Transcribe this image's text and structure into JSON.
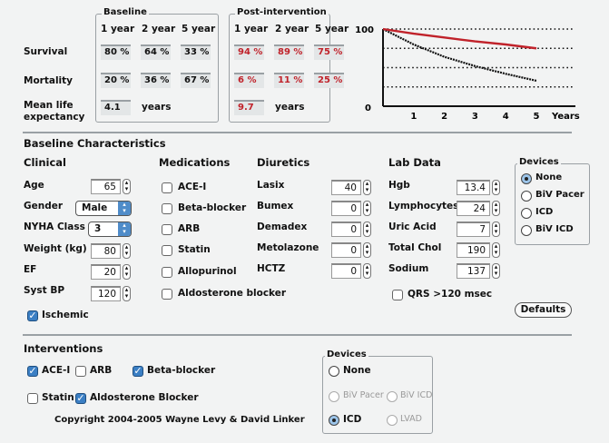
{
  "results": {
    "baseline_legend": "Baseline",
    "post_legend": "Post-intervention",
    "year_headers": [
      "1 year",
      "2 year",
      "5 year"
    ],
    "row_labels": {
      "survival": "Survival",
      "mortality": "Mortality",
      "mean_life": "Mean life",
      "expectancy": "expectancy"
    },
    "baseline": {
      "survival": [
        "80 %",
        "64 %",
        "33 %"
      ],
      "mortality": [
        "20 %",
        "36 %",
        "67 %"
      ],
      "mean_life": "4.1"
    },
    "post": {
      "survival": [
        "94 %",
        "89 %",
        "75 %"
      ],
      "mortality": [
        "6 %",
        "11 %",
        "25 %"
      ],
      "mean_life": "9.7"
    },
    "years_unit": "years"
  },
  "chart_data": {
    "type": "line",
    "x": [
      0,
      1,
      2,
      3,
      4,
      5
    ],
    "series": [
      {
        "name": "Baseline",
        "color": "#111111",
        "values": [
          100,
          80,
          64,
          52,
          42,
          33
        ]
      },
      {
        "name": "Post-intervention",
        "color": "#c0222a",
        "values": [
          100,
          94,
          89,
          84,
          80,
          75
        ]
      }
    ],
    "xticks": [
      "1",
      "2",
      "3",
      "4",
      "5"
    ],
    "ytick_labels": [
      "100",
      "0"
    ],
    "xlabel": "Years",
    "ylim": [
      0,
      100
    ],
    "xlim": [
      0,
      5
    ],
    "gridlines": [
      25,
      50,
      75,
      100
    ],
    "grid": "dotted horizontal"
  },
  "baseline_section": {
    "title": "Baseline Characteristics"
  },
  "clinical": {
    "title": "Clinical",
    "age": {
      "label": "Age",
      "value": "65"
    },
    "gender": {
      "label": "Gender",
      "value": "Male"
    },
    "nyha": {
      "label": "NYHA Class",
      "value": "3"
    },
    "weight": {
      "label": "Weight (kg)",
      "value": "80"
    },
    "ef": {
      "label": "EF",
      "value": "20"
    },
    "sbp": {
      "label": "Syst BP",
      "value": "120"
    },
    "ischemic": {
      "label": "Ischemic",
      "checked": true
    }
  },
  "medications": {
    "title": "Medications",
    "items": [
      {
        "label": "ACE-I",
        "checked": false
      },
      {
        "label": "Beta-blocker",
        "checked": false
      },
      {
        "label": "ARB",
        "checked": false
      },
      {
        "label": "Statin",
        "checked": false
      },
      {
        "label": "Allopurinol",
        "checked": false
      },
      {
        "label": "Aldosterone blocker",
        "checked": false
      }
    ]
  },
  "diuretics": {
    "title": "Diuretics",
    "items": [
      {
        "label": "Lasix",
        "value": "40"
      },
      {
        "label": "Bumex",
        "value": "0"
      },
      {
        "label": "Demadex",
        "value": "0"
      },
      {
        "label": "Metolazone",
        "value": "0"
      },
      {
        "label": "HCTZ",
        "value": "0"
      }
    ]
  },
  "lab": {
    "title": "Lab Data",
    "items": [
      {
        "label": "Hgb",
        "value": "13.4"
      },
      {
        "label": "Lymphocytes",
        "value": "24"
      },
      {
        "label": "Uric Acid",
        "value": "7"
      },
      {
        "label": "Total Chol",
        "value": "190"
      },
      {
        "label": "Sodium",
        "value": "137"
      }
    ],
    "qrs": {
      "label": "QRS >120 msec",
      "checked": false
    }
  },
  "devices": {
    "title": "Devices",
    "options": [
      "None",
      "BiV Pacer",
      "ICD",
      "BiV ICD"
    ],
    "selected": "None"
  },
  "defaults_button": "Defaults",
  "interventions": {
    "title": "Interventions",
    "items": [
      {
        "label": "ACE-I",
        "checked": true
      },
      {
        "label": "ARB",
        "checked": false
      },
      {
        "label": "Beta-blocker",
        "checked": true
      },
      {
        "label": "Statin",
        "checked": false
      },
      {
        "label": "Aldosterone Blocker",
        "checked": true
      }
    ],
    "devices": {
      "title": "Devices",
      "none": "None",
      "biv_pacer": "BiV Pacer",
      "biv_icd": "BiV ICD",
      "icd": "ICD",
      "lvad": "LVAD",
      "selected": "ICD"
    }
  },
  "copyright": "Copyright 2004-2005 Wayne Levy & David Linker"
}
